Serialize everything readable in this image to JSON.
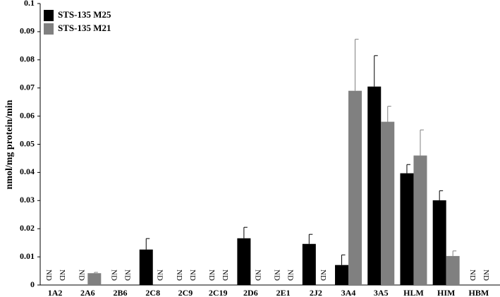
{
  "chart_data": {
    "type": "bar",
    "y_label": "nmol/mg protein/min",
    "categories": [
      "1A2",
      "2A6",
      "2B6",
      "2C8",
      "2C9",
      "2C19",
      "2D6",
      "2E1",
      "2J2",
      "3A4",
      "3A5",
      "HLM",
      "HIM",
      "HBM"
    ],
    "series": [
      {
        "name": "STS-135 M25",
        "color": "#000000",
        "values": [
          null,
          null,
          null,
          0.0126,
          null,
          null,
          0.0166,
          null,
          0.0146,
          0.0071,
          0.0705,
          0.0397,
          0.0301,
          null
        ],
        "errors": [
          null,
          null,
          null,
          0.0039,
          null,
          null,
          0.0039,
          null,
          0.0034,
          0.0036,
          0.011,
          0.0031,
          0.0034,
          null
        ],
        "value_labels": [
          "ND",
          "ND",
          "ND",
          null,
          "ND",
          "ND",
          null,
          "ND",
          null,
          null,
          null,
          null,
          null,
          "ND"
        ]
      },
      {
        "name": "STS-135 M21",
        "color": "#808080",
        "values": [
          null,
          0.0042,
          null,
          null,
          null,
          null,
          null,
          null,
          null,
          0.069,
          0.058,
          0.046,
          0.0103,
          null
        ],
        "errors": [
          null,
          0.0003,
          null,
          null,
          null,
          null,
          null,
          null,
          null,
          0.0183,
          0.0055,
          0.0091,
          0.0018,
          null
        ],
        "value_labels": [
          "ND",
          null,
          "ND",
          "ND",
          "ND",
          "ND",
          "ND",
          "ND",
          "ND",
          null,
          null,
          null,
          null,
          "ND"
        ]
      }
    ],
    "ylim": [
      0,
      0.1
    ],
    "yticks": [
      0,
      0.01,
      0.02,
      0.03,
      0.04,
      0.05,
      0.06,
      0.07,
      0.08,
      0.09,
      0.1
    ],
    "grid": false,
    "legend": "top-left"
  }
}
